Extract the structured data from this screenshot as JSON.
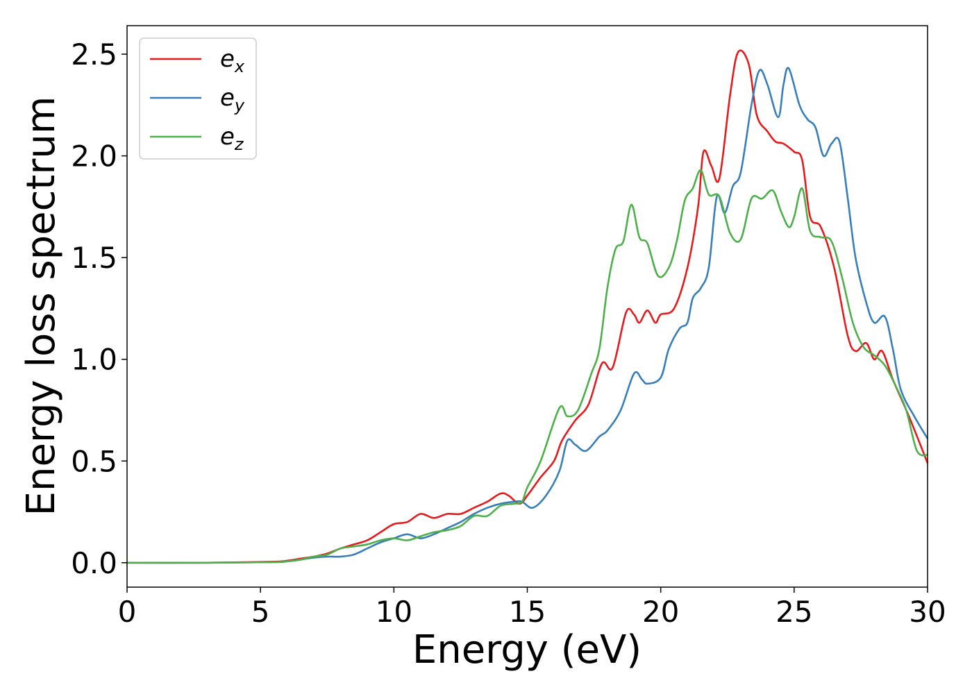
{
  "chart_data": {
    "type": "line",
    "title": "",
    "xlabel": "Energy (eV)",
    "ylabel": "Energy loss spectrum",
    "xlim": [
      0,
      30
    ],
    "ylim": [
      -0.12,
      2.64
    ],
    "xticks": [
      0,
      5,
      10,
      15,
      20,
      25,
      30
    ],
    "xtick_labels": [
      "0",
      "5",
      "10",
      "15",
      "20",
      "25",
      "30"
    ],
    "yticks": [
      0.0,
      0.5,
      1.0,
      1.5,
      2.0,
      2.5
    ],
    "ytick_labels": [
      "0.0",
      "0.5",
      "1.0",
      "1.5",
      "2.0",
      "2.5"
    ],
    "grid": false,
    "legend_position": "upper-left",
    "series": [
      {
        "name": "e_x",
        "label_base": "e",
        "label_sub": "x",
        "color": "#e41a1c",
        "points": [
          [
            0,
            0
          ],
          [
            3,
            0
          ],
          [
            5.5,
            0.005
          ],
          [
            6,
            0.01
          ],
          [
            6.5,
            0.02
          ],
          [
            7,
            0.03
          ],
          [
            7.5,
            0.045
          ],
          [
            8,
            0.07
          ],
          [
            8.5,
            0.09
          ],
          [
            9,
            0.11
          ],
          [
            9.5,
            0.15
          ],
          [
            10,
            0.19
          ],
          [
            10.5,
            0.2
          ],
          [
            11,
            0.24
          ],
          [
            11.5,
            0.22
          ],
          [
            12,
            0.24
          ],
          [
            12.5,
            0.24
          ],
          [
            13,
            0.27
          ],
          [
            13.5,
            0.3
          ],
          [
            14,
            0.34
          ],
          [
            14.3,
            0.33
          ],
          [
            14.7,
            0.29
          ],
          [
            15,
            0.33
          ],
          [
            15.5,
            0.42
          ],
          [
            16,
            0.5
          ],
          [
            16.3,
            0.6
          ],
          [
            16.8,
            0.7
          ],
          [
            17.3,
            0.78
          ],
          [
            17.8,
            0.98
          ],
          [
            18.2,
            0.96
          ],
          [
            18.7,
            1.23
          ],
          [
            19,
            1.22
          ],
          [
            19.2,
            1.18
          ],
          [
            19.5,
            1.24
          ],
          [
            19.8,
            1.18
          ],
          [
            20,
            1.22
          ],
          [
            20.5,
            1.25
          ],
          [
            21,
            1.45
          ],
          [
            21.4,
            1.75
          ],
          [
            21.6,
            2.02
          ],
          [
            21.9,
            1.95
          ],
          [
            22.2,
            1.89
          ],
          [
            22.6,
            2.3
          ],
          [
            22.9,
            2.51
          ],
          [
            23.3,
            2.45
          ],
          [
            23.6,
            2.2
          ],
          [
            24,
            2.12
          ],
          [
            24.3,
            2.07
          ],
          [
            24.6,
            2.06
          ],
          [
            25,
            2.02
          ],
          [
            25.3,
            1.98
          ],
          [
            25.6,
            1.7
          ],
          [
            26,
            1.65
          ],
          [
            26.5,
            1.45
          ],
          [
            27,
            1.12
          ],
          [
            27.3,
            1.04
          ],
          [
            27.7,
            1.08
          ],
          [
            28,
            1.0
          ],
          [
            28.3,
            1.04
          ],
          [
            28.7,
            0.9
          ],
          [
            29.3,
            0.72
          ],
          [
            30,
            0.49
          ]
        ]
      },
      {
        "name": "e_y",
        "label_base": "e",
        "label_sub": "y",
        "color": "#377eb8",
        "points": [
          [
            0,
            0
          ],
          [
            3,
            0
          ],
          [
            5.5,
            0.003
          ],
          [
            6,
            0.007
          ],
          [
            6.5,
            0.015
          ],
          [
            7,
            0.025
          ],
          [
            7.5,
            0.03
          ],
          [
            8,
            0.03
          ],
          [
            8.5,
            0.04
          ],
          [
            9,
            0.07
          ],
          [
            9.5,
            0.1
          ],
          [
            10,
            0.12
          ],
          [
            10.5,
            0.14
          ],
          [
            11,
            0.12
          ],
          [
            11.5,
            0.14
          ],
          [
            12,
            0.17
          ],
          [
            12.5,
            0.2
          ],
          [
            13,
            0.24
          ],
          [
            13.5,
            0.27
          ],
          [
            14,
            0.29
          ],
          [
            14.5,
            0.3
          ],
          [
            14.8,
            0.3
          ],
          [
            15.2,
            0.27
          ],
          [
            15.7,
            0.33
          ],
          [
            16.2,
            0.45
          ],
          [
            16.5,
            0.6
          ],
          [
            16.8,
            0.58
          ],
          [
            17.2,
            0.55
          ],
          [
            17.7,
            0.62
          ],
          [
            18,
            0.65
          ],
          [
            18.5,
            0.75
          ],
          [
            19,
            0.93
          ],
          [
            19.3,
            0.9
          ],
          [
            19.5,
            0.88
          ],
          [
            20,
            0.91
          ],
          [
            20.3,
            1.05
          ],
          [
            20.7,
            1.15
          ],
          [
            21,
            1.18
          ],
          [
            21.2,
            1.3
          ],
          [
            21.5,
            1.35
          ],
          [
            21.8,
            1.45
          ],
          [
            22.1,
            1.8
          ],
          [
            22.4,
            1.72
          ],
          [
            22.7,
            1.85
          ],
          [
            23,
            1.92
          ],
          [
            23.4,
            2.25
          ],
          [
            23.7,
            2.42
          ],
          [
            24,
            2.35
          ],
          [
            24.4,
            2.19
          ],
          [
            24.6,
            2.35
          ],
          [
            24.8,
            2.43
          ],
          [
            25.2,
            2.25
          ],
          [
            25.5,
            2.18
          ],
          [
            25.8,
            2.14
          ],
          [
            26.1,
            2.0
          ],
          [
            26.4,
            2.06
          ],
          [
            26.7,
            2.07
          ],
          [
            27,
            1.8
          ],
          [
            27.3,
            1.5
          ],
          [
            27.7,
            1.28
          ],
          [
            28,
            1.18
          ],
          [
            28.4,
            1.21
          ],
          [
            28.7,
            1.05
          ],
          [
            29,
            0.85
          ],
          [
            29.5,
            0.72
          ],
          [
            30,
            0.61
          ]
        ]
      },
      {
        "name": "e_z",
        "label_base": "e",
        "label_sub": "z",
        "color": "#4daf4a",
        "points": [
          [
            0,
            0
          ],
          [
            3,
            0
          ],
          [
            5.5,
            0.003
          ],
          [
            6,
            0.007
          ],
          [
            6.5,
            0.015
          ],
          [
            7,
            0.03
          ],
          [
            7.5,
            0.04
          ],
          [
            8,
            0.07
          ],
          [
            8.5,
            0.08
          ],
          [
            9,
            0.09
          ],
          [
            9.5,
            0.11
          ],
          [
            10,
            0.12
          ],
          [
            10.5,
            0.11
          ],
          [
            11,
            0.13
          ],
          [
            11.5,
            0.15
          ],
          [
            12,
            0.16
          ],
          [
            12.5,
            0.18
          ],
          [
            13,
            0.23
          ],
          [
            13.5,
            0.23
          ],
          [
            14,
            0.28
          ],
          [
            14.5,
            0.29
          ],
          [
            14.8,
            0.3
          ],
          [
            15,
            0.37
          ],
          [
            15.5,
            0.5
          ],
          [
            16.2,
            0.76
          ],
          [
            16.5,
            0.72
          ],
          [
            16.9,
            0.75
          ],
          [
            17.4,
            0.93
          ],
          [
            17.7,
            1.05
          ],
          [
            18,
            1.35
          ],
          [
            18.3,
            1.54
          ],
          [
            18.6,
            1.58
          ],
          [
            18.9,
            1.76
          ],
          [
            19.2,
            1.6
          ],
          [
            19.5,
            1.57
          ],
          [
            19.9,
            1.41
          ],
          [
            20.3,
            1.45
          ],
          [
            20.6,
            1.58
          ],
          [
            20.9,
            1.78
          ],
          [
            21.2,
            1.84
          ],
          [
            21.5,
            1.93
          ],
          [
            21.8,
            1.81
          ],
          [
            22.2,
            1.8
          ],
          [
            22.6,
            1.62
          ],
          [
            23,
            1.59
          ],
          [
            23.4,
            1.79
          ],
          [
            23.8,
            1.79
          ],
          [
            24.2,
            1.83
          ],
          [
            24.5,
            1.73
          ],
          [
            24.8,
            1.65
          ],
          [
            25,
            1.7
          ],
          [
            25.3,
            1.84
          ],
          [
            25.6,
            1.63
          ],
          [
            26,
            1.6
          ],
          [
            26.4,
            1.58
          ],
          [
            26.8,
            1.4
          ],
          [
            27.2,
            1.18
          ],
          [
            27.6,
            1.06
          ],
          [
            28,
            1.02
          ],
          [
            28.4,
            0.97
          ],
          [
            28.8,
            0.87
          ],
          [
            29.2,
            0.75
          ],
          [
            29.6,
            0.55
          ],
          [
            30,
            0.53
          ]
        ]
      }
    ]
  }
}
